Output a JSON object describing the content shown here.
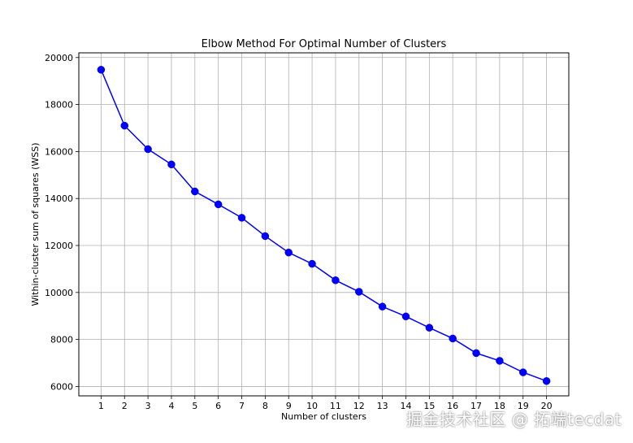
{
  "chart_data": {
    "type": "line",
    "title": "Elbow Method For Optimal Number of Clusters",
    "xlabel": "Number of clusters",
    "ylabel": "Within-cluster sum of squares (WSS)",
    "x": [
      1,
      2,
      3,
      4,
      5,
      6,
      7,
      8,
      9,
      10,
      11,
      12,
      13,
      14,
      15,
      16,
      17,
      18,
      19,
      20
    ],
    "series": [
      {
        "values": [
          19480,
          17100,
          16100,
          15450,
          14300,
          13750,
          13180,
          12400,
          11700,
          11220,
          10520,
          10030,
          9400,
          8980,
          8500,
          8040,
          7420,
          7090,
          6600,
          6230
        ],
        "color": "#0000ff",
        "marker": "circle"
      }
    ],
    "xlim": [
      0.05,
      20.95
    ],
    "ylim": [
      5600,
      20200
    ],
    "xticks": [
      1,
      2,
      3,
      4,
      5,
      6,
      7,
      8,
      9,
      10,
      11,
      12,
      13,
      14,
      15,
      16,
      17,
      18,
      19,
      20
    ],
    "yticks": [
      6000,
      8000,
      10000,
      12000,
      14000,
      16000,
      18000,
      20000
    ],
    "grid": true,
    "legend": "none"
  },
  "watermark": {
    "text": "掘金技术社区 @ 拓端tecdat"
  }
}
